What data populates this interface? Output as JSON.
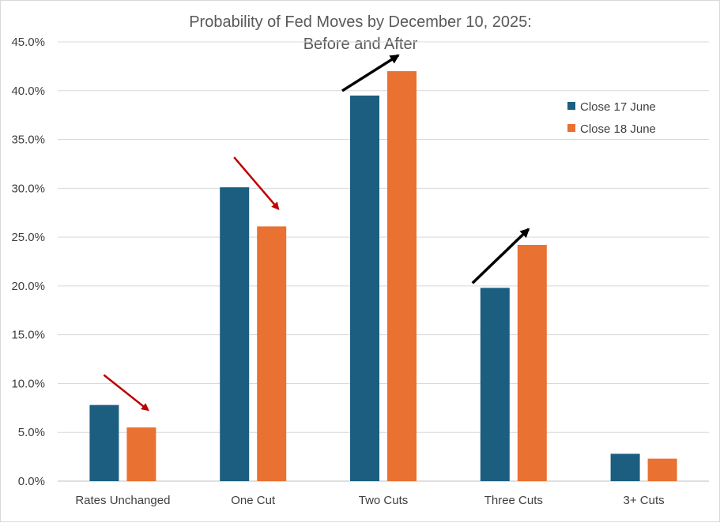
{
  "chart_data": {
    "type": "bar",
    "title": "Probability of Fed Moves by December 10, 2025:",
    "subtitle": "Before and After",
    "categories": [
      "Rates Unchanged",
      "One Cut",
      "Two Cuts",
      "Three Cuts",
      "3+ Cuts"
    ],
    "series": [
      {
        "name": "Close 17 June",
        "color": "#1b5e80",
        "values": [
          7.8,
          30.1,
          39.5,
          19.8,
          2.8
        ]
      },
      {
        "name": "Close 18 June",
        "color": "#e97132",
        "values": [
          5.5,
          26.1,
          42.0,
          24.2,
          2.3
        ]
      }
    ],
    "ylim": [
      0,
      45
    ],
    "yticks": [
      "0.0%",
      "5.0%",
      "10.0%",
      "15.0%",
      "20.0%",
      "25.0%",
      "30.0%",
      "35.0%",
      "40.0%",
      "45.0%"
    ],
    "grid": true,
    "legend_position": "top-right",
    "annotations": [
      {
        "category": "Rates Unchanged",
        "direction": "down",
        "color": "#c00000"
      },
      {
        "category": "One Cut",
        "direction": "down",
        "color": "#c00000"
      },
      {
        "category": "Two Cuts",
        "direction": "up",
        "color": "#000000"
      },
      {
        "category": "Three Cuts",
        "direction": "up",
        "color": "#000000"
      }
    ]
  }
}
